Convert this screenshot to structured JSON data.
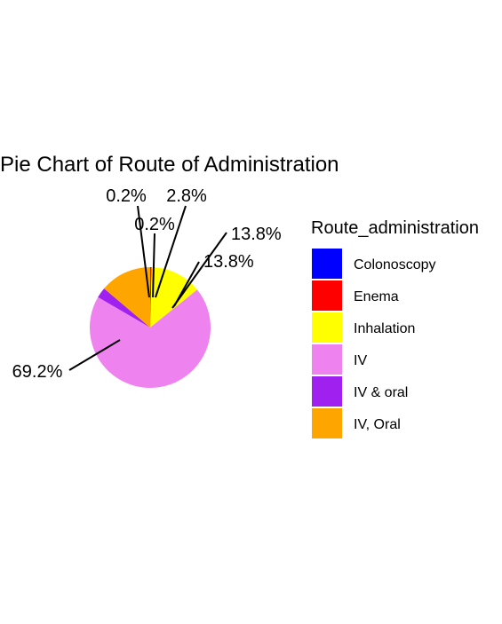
{
  "chart_data": {
    "type": "pie",
    "title": "Pie Chart of Route of Administration",
    "legend_title": "Route_administration",
    "legend_position": "right",
    "slices": [
      {
        "name": "Colonoscopy",
        "percent": 0.2,
        "label": "0.2%",
        "color": "#0000FF"
      },
      {
        "name": "Enema",
        "percent": 0.2,
        "label": "0.2%",
        "color": "#FF0000"
      },
      {
        "name": "Inhalation",
        "percent": 13.8,
        "label": "13.8%",
        "color": "#FFFF00"
      },
      {
        "name": "IV",
        "percent": 69.2,
        "label": "69.2%",
        "color": "#EE82EE"
      },
      {
        "name": "IV & oral",
        "percent": 2.8,
        "label": "2.8%",
        "color": "#A020F0"
      },
      {
        "name": "IV, Oral",
        "percent": 13.8,
        "label": "13.8%",
        "color": "#FFA500"
      }
    ]
  }
}
